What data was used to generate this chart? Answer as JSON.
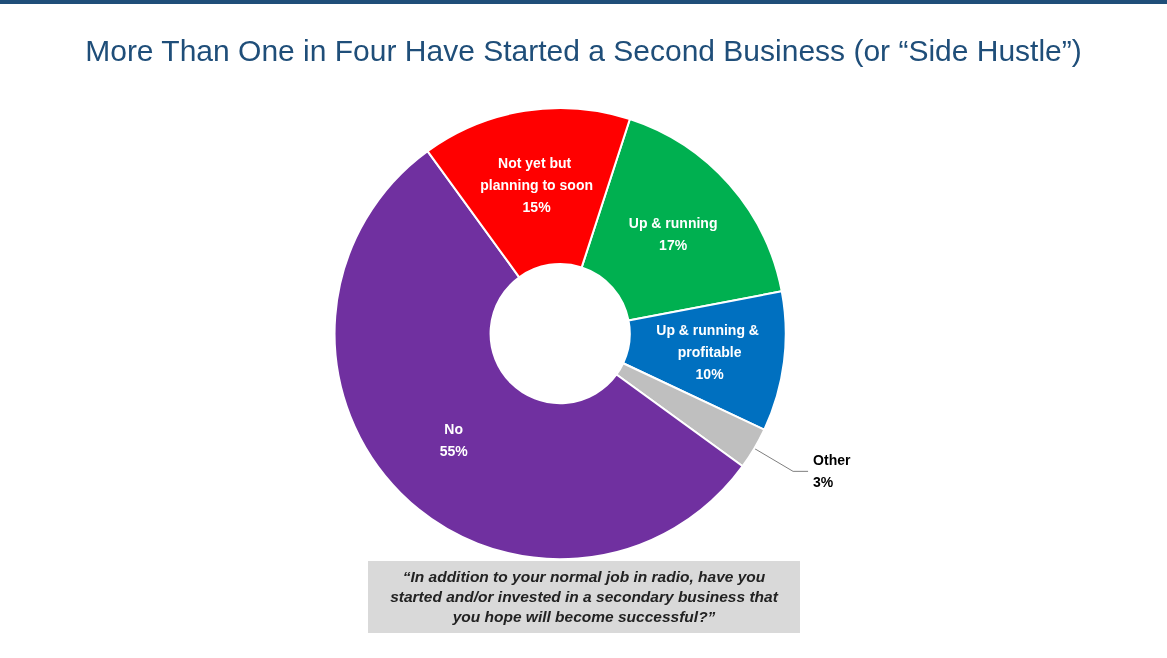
{
  "chart_data": {
    "type": "donut",
    "title": "More Than One in Four Have Started a Second Business (or “Side Hustle”)",
    "categories": [
      "Up & running",
      "Up & running & profitable",
      "Other",
      "No",
      "Not yet but planning to soon"
    ],
    "values": [
      17,
      10,
      3,
      55,
      15
    ],
    "value_labels": [
      "17%",
      "10%",
      "3%",
      "55%",
      "15%"
    ],
    "colors": [
      "#00b050",
      "#0070c0",
      "#bfbfbf",
      "#7030a0",
      "#ff0000"
    ],
    "annotations": [
      "“In addition to your normal job in radio, have you started and/or invested in a secondary business that you hope will become successful?”"
    ],
    "legend": false
  }
}
